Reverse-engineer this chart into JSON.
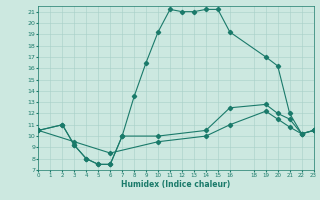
{
  "xlabel": "Humidex (Indice chaleur)",
  "xlim": [
    0,
    23
  ],
  "ylim": [
    7,
    21.5
  ],
  "yticks": [
    7,
    8,
    9,
    10,
    11,
    12,
    13,
    14,
    15,
    16,
    17,
    18,
    19,
    20,
    21
  ],
  "xtick_vals": [
    0,
    1,
    2,
    3,
    4,
    5,
    6,
    7,
    8,
    9,
    10,
    11,
    12,
    13,
    14,
    15,
    16,
    18,
    19,
    20,
    21,
    22,
    23
  ],
  "line_color": "#1a7a6a",
  "bg_color": "#cce8e0",
  "grid_color": "#a8d0c8",
  "line1_x": [
    0,
    2,
    3,
    4,
    5,
    6,
    7,
    8,
    9,
    10,
    11,
    12,
    13,
    14,
    15,
    16,
    19,
    20,
    21,
    22,
    23
  ],
  "line1_y": [
    10.5,
    11.0,
    9.2,
    8.0,
    7.5,
    7.5,
    10.0,
    13.5,
    16.5,
    19.2,
    21.2,
    21.0,
    21.0,
    21.2,
    21.2,
    19.2,
    17.0,
    16.2,
    12.0,
    10.2,
    10.5
  ],
  "line2_x": [
    0,
    2,
    3,
    4,
    5,
    6,
    7,
    10,
    14,
    16,
    19,
    20,
    21,
    22,
    23
  ],
  "line2_y": [
    10.5,
    11.0,
    9.2,
    8.0,
    7.5,
    7.5,
    10.0,
    10.0,
    10.5,
    12.5,
    12.8,
    12.0,
    11.5,
    10.2,
    10.5
  ],
  "line3_x": [
    0,
    3,
    6,
    10,
    14,
    16,
    19,
    20,
    21,
    22,
    23
  ],
  "line3_y": [
    10.5,
    9.5,
    8.5,
    9.5,
    10.0,
    11.0,
    12.2,
    11.5,
    10.8,
    10.2,
    10.5
  ]
}
